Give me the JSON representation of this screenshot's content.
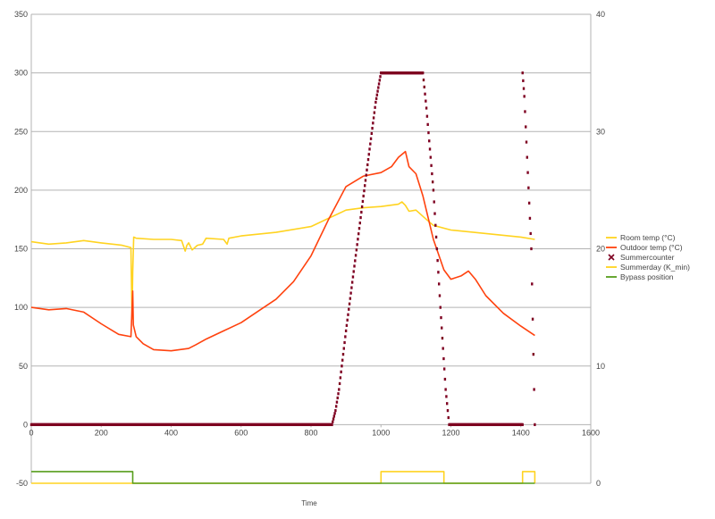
{
  "chart_data": {
    "type": "line",
    "xlabel": "Time",
    "xlim": [
      0,
      1600
    ],
    "ylim_left": [
      -50,
      350
    ],
    "ylim_right": [
      0,
      40
    ],
    "x_ticks": [
      "0",
      "200",
      "400",
      "600",
      "800",
      "1000",
      "1200",
      "1400",
      "1600"
    ],
    "y_ticks_left": [
      "-50",
      "0",
      "50",
      "100",
      "150",
      "200",
      "250",
      "300",
      "350"
    ],
    "y_ticks_right": [
      "0",
      "10",
      "20",
      "30",
      "40"
    ],
    "grid": true,
    "legend_position": "right",
    "legend": [
      {
        "name": "Room temp (°C)",
        "color": "#ffd320",
        "marker": "line"
      },
      {
        "name": "Outdoor temp (°C)",
        "color": "#ff420e",
        "marker": "line"
      },
      {
        "name": "Summercounter",
        "color": "#7e0021",
        "marker": "x"
      },
      {
        "name": "Summerday (K_min)",
        "color": "#ffd320",
        "marker": "line"
      },
      {
        "name": "Bypass position",
        "color": "#579d1c",
        "marker": "line"
      }
    ],
    "series": [
      {
        "name": "Room temp (°C)",
        "axis": "right",
        "color": "#ffd320",
        "points": [
          [
            0,
            20.6
          ],
          [
            50,
            20.4
          ],
          [
            100,
            20.5
          ],
          [
            150,
            20.7
          ],
          [
            200,
            20.5
          ],
          [
            260,
            20.3
          ],
          [
            285,
            20.1
          ],
          [
            288,
            14.0
          ],
          [
            290,
            18.0
          ],
          [
            293,
            21.0
          ],
          [
            300,
            20.9
          ],
          [
            350,
            20.8
          ],
          [
            400,
            20.8
          ],
          [
            430,
            20.7
          ],
          [
            440,
            19.8
          ],
          [
            445,
            20.3
          ],
          [
            450,
            20.5
          ],
          [
            460,
            19.9
          ],
          [
            475,
            20.3
          ],
          [
            490,
            20.4
          ],
          [
            500,
            20.9
          ],
          [
            550,
            20.8
          ],
          [
            560,
            20.4
          ],
          [
            565,
            20.9
          ],
          [
            600,
            21.1
          ],
          [
            700,
            21.4
          ],
          [
            800,
            21.9
          ],
          [
            850,
            22.6
          ],
          [
            900,
            23.3
          ],
          [
            950,
            23.5
          ],
          [
            1000,
            23.6
          ],
          [
            1050,
            23.8
          ],
          [
            1060,
            24.0
          ],
          [
            1070,
            23.7
          ],
          [
            1080,
            23.2
          ],
          [
            1100,
            23.3
          ],
          [
            1130,
            22.5
          ],
          [
            1150,
            22.0
          ],
          [
            1200,
            21.6
          ],
          [
            1300,
            21.3
          ],
          [
            1400,
            21.0
          ],
          [
            1440,
            20.8
          ]
        ]
      },
      {
        "name": "Outdoor temp (°C)",
        "axis": "right",
        "color": "#ff420e",
        "points": [
          [
            0,
            15.0
          ],
          [
            50,
            14.8
          ],
          [
            100,
            14.9
          ],
          [
            150,
            14.6
          ],
          [
            200,
            13.6
          ],
          [
            250,
            12.7
          ],
          [
            285,
            12.5
          ],
          [
            290,
            16.4
          ],
          [
            292,
            13.5
          ],
          [
            300,
            12.5
          ],
          [
            320,
            11.9
          ],
          [
            350,
            11.4
          ],
          [
            400,
            11.3
          ],
          [
            450,
            11.5
          ],
          [
            470,
            11.8
          ],
          [
            500,
            12.3
          ],
          [
            550,
            13.0
          ],
          [
            600,
            13.7
          ],
          [
            650,
            14.7
          ],
          [
            700,
            15.7
          ],
          [
            750,
            17.2
          ],
          [
            800,
            19.4
          ],
          [
            850,
            22.5
          ],
          [
            900,
            25.3
          ],
          [
            950,
            26.2
          ],
          [
            1000,
            26.5
          ],
          [
            1030,
            27.0
          ],
          [
            1050,
            27.8
          ],
          [
            1070,
            28.3
          ],
          [
            1080,
            27.0
          ],
          [
            1100,
            26.4
          ],
          [
            1120,
            24.5
          ],
          [
            1150,
            20.8
          ],
          [
            1180,
            18.2
          ],
          [
            1200,
            17.4
          ],
          [
            1230,
            17.7
          ],
          [
            1250,
            18.1
          ],
          [
            1270,
            17.4
          ],
          [
            1300,
            16.0
          ],
          [
            1350,
            14.5
          ],
          [
            1400,
            13.4
          ],
          [
            1440,
            12.6
          ]
        ]
      },
      {
        "name": "Summercounter",
        "axis": "left",
        "color": "#7e0021",
        "marker": "point",
        "points": [
          [
            0,
            0
          ],
          [
            860,
            0
          ],
          [
            870,
            12
          ],
          [
            880,
            30
          ],
          [
            900,
            80
          ],
          [
            950,
            195
          ],
          [
            985,
            275
          ],
          [
            1000,
            300
          ],
          [
            1120,
            300
          ],
          [
            1130,
            270
          ],
          [
            1150,
            200
          ],
          [
            1170,
            100
          ],
          [
            1185,
            30
          ],
          [
            1195,
            0
          ],
          [
            1405,
            0
          ],
          [
            1405,
            300
          ],
          [
            1410,
            280
          ],
          [
            1420,
            215
          ],
          [
            1430,
            150
          ],
          [
            1440,
            0
          ]
        ]
      },
      {
        "name": "Summerday (K_min)",
        "axis": "left",
        "color": "#ffd320",
        "step": true,
        "points": [
          [
            0,
            -50
          ],
          [
            1000,
            -50
          ],
          [
            1000,
            -40
          ],
          [
            1180,
            -40
          ],
          [
            1180,
            -50
          ],
          [
            1405,
            -50
          ],
          [
            1405,
            -40
          ],
          [
            1440,
            -40
          ],
          [
            1440,
            -50
          ]
        ]
      },
      {
        "name": "Bypass position",
        "axis": "left",
        "color": "#579d1c",
        "step": true,
        "points": [
          [
            0,
            -40
          ],
          [
            290,
            -40
          ],
          [
            290,
            -50
          ],
          [
            1000,
            -50
          ],
          [
            1180,
            -50
          ],
          [
            1440,
            -50
          ]
        ]
      }
    ]
  }
}
